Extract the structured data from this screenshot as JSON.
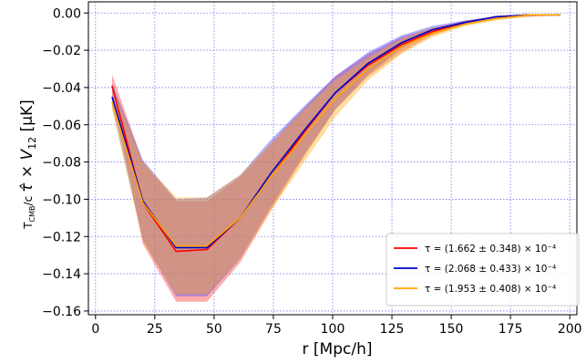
{
  "chart_data": {
    "type": "line",
    "title": "",
    "xlabel": "r [Mpc/h]",
    "ylabel": "T_CMB/c τ̂ × V_12 [μK]",
    "xlim": [
      -3,
      203
    ],
    "ylim": [
      -0.162,
      0.006
    ],
    "xticks": [
      0,
      25,
      50,
      75,
      100,
      125,
      150,
      175,
      200
    ],
    "yticks": [
      0.0,
      -0.02,
      -0.04,
      -0.06,
      -0.08,
      -0.1,
      -0.12,
      -0.14,
      -0.16
    ],
    "xtick_labels": [
      "0",
      "25",
      "50",
      "75",
      "100",
      "125",
      "150",
      "175",
      "200"
    ],
    "ytick_labels": [
      "0.00",
      "−0.02",
      "−0.04",
      "−0.06",
      "−0.08",
      "−0.10",
      "−0.12",
      "−0.14",
      "−0.16"
    ],
    "grid": true,
    "grid_color": "#7777ee",
    "legend_position": "lower-right",
    "x": [
      7,
      20,
      34,
      47,
      61,
      74,
      88,
      101,
      115,
      129,
      142,
      156,
      169,
      183,
      196
    ],
    "series": [
      {
        "name": "τ = (1.662 ± 0.348) × 10⁻⁴",
        "color": "#ff0000",
        "band_color": "#ff3a3a",
        "values": [
          -0.039,
          -0.102,
          -0.128,
          -0.127,
          -0.11,
          -0.088,
          -0.064,
          -0.043,
          -0.028,
          -0.017,
          -0.01,
          -0.005,
          -0.002,
          -0.001,
          -0.001
        ],
        "lower": [
          -0.043,
          -0.124,
          -0.155,
          -0.155,
          -0.134,
          -0.106,
          -0.077,
          -0.052,
          -0.034,
          -0.021,
          -0.012,
          -0.006,
          -0.003,
          -0.002,
          -0.001
        ],
        "upper": [
          -0.033,
          -0.08,
          -0.101,
          -0.101,
          -0.088,
          -0.07,
          -0.051,
          -0.034,
          -0.022,
          -0.013,
          -0.008,
          -0.004,
          -0.002,
          -0.001,
          -0.0005
        ]
      },
      {
        "name": "τ = (2.068 ± 0.433) × 10⁻⁴",
        "color": "#0000cc",
        "band_color": "#4040ff",
        "values": [
          -0.045,
          -0.101,
          -0.126,
          -0.126,
          -0.11,
          -0.086,
          -0.063,
          -0.043,
          -0.027,
          -0.016,
          -0.009,
          -0.005,
          -0.002,
          -0.001,
          -0.001
        ],
        "lower": [
          -0.05,
          -0.122,
          -0.152,
          -0.152,
          -0.132,
          -0.104,
          -0.076,
          -0.052,
          -0.033,
          -0.019,
          -0.011,
          -0.006,
          -0.003,
          -0.001,
          -0.001
        ],
        "upper": [
          -0.038,
          -0.079,
          -0.1,
          -0.099,
          -0.087,
          -0.068,
          -0.05,
          -0.034,
          -0.021,
          -0.012,
          -0.007,
          -0.004,
          -0.002,
          -0.001,
          -0.0005
        ]
      },
      {
        "name": "τ = (1.953 ± 0.408) × 10⁻⁴",
        "color": "#ffa500",
        "band_color": "#ffb020",
        "values": [
          -0.048,
          -0.102,
          -0.125,
          -0.125,
          -0.11,
          -0.088,
          -0.066,
          -0.046,
          -0.03,
          -0.018,
          -0.011,
          -0.006,
          -0.003,
          -0.001,
          -0.001
        ],
        "lower": [
          -0.052,
          -0.123,
          -0.151,
          -0.151,
          -0.132,
          -0.106,
          -0.08,
          -0.056,
          -0.036,
          -0.022,
          -0.013,
          -0.007,
          -0.004,
          -0.002,
          -0.001
        ],
        "upper": [
          -0.04,
          -0.08,
          -0.099,
          -0.099,
          -0.087,
          -0.07,
          -0.052,
          -0.036,
          -0.024,
          -0.014,
          -0.008,
          -0.005,
          -0.002,
          -0.001,
          -0.0005
        ]
      }
    ]
  }
}
